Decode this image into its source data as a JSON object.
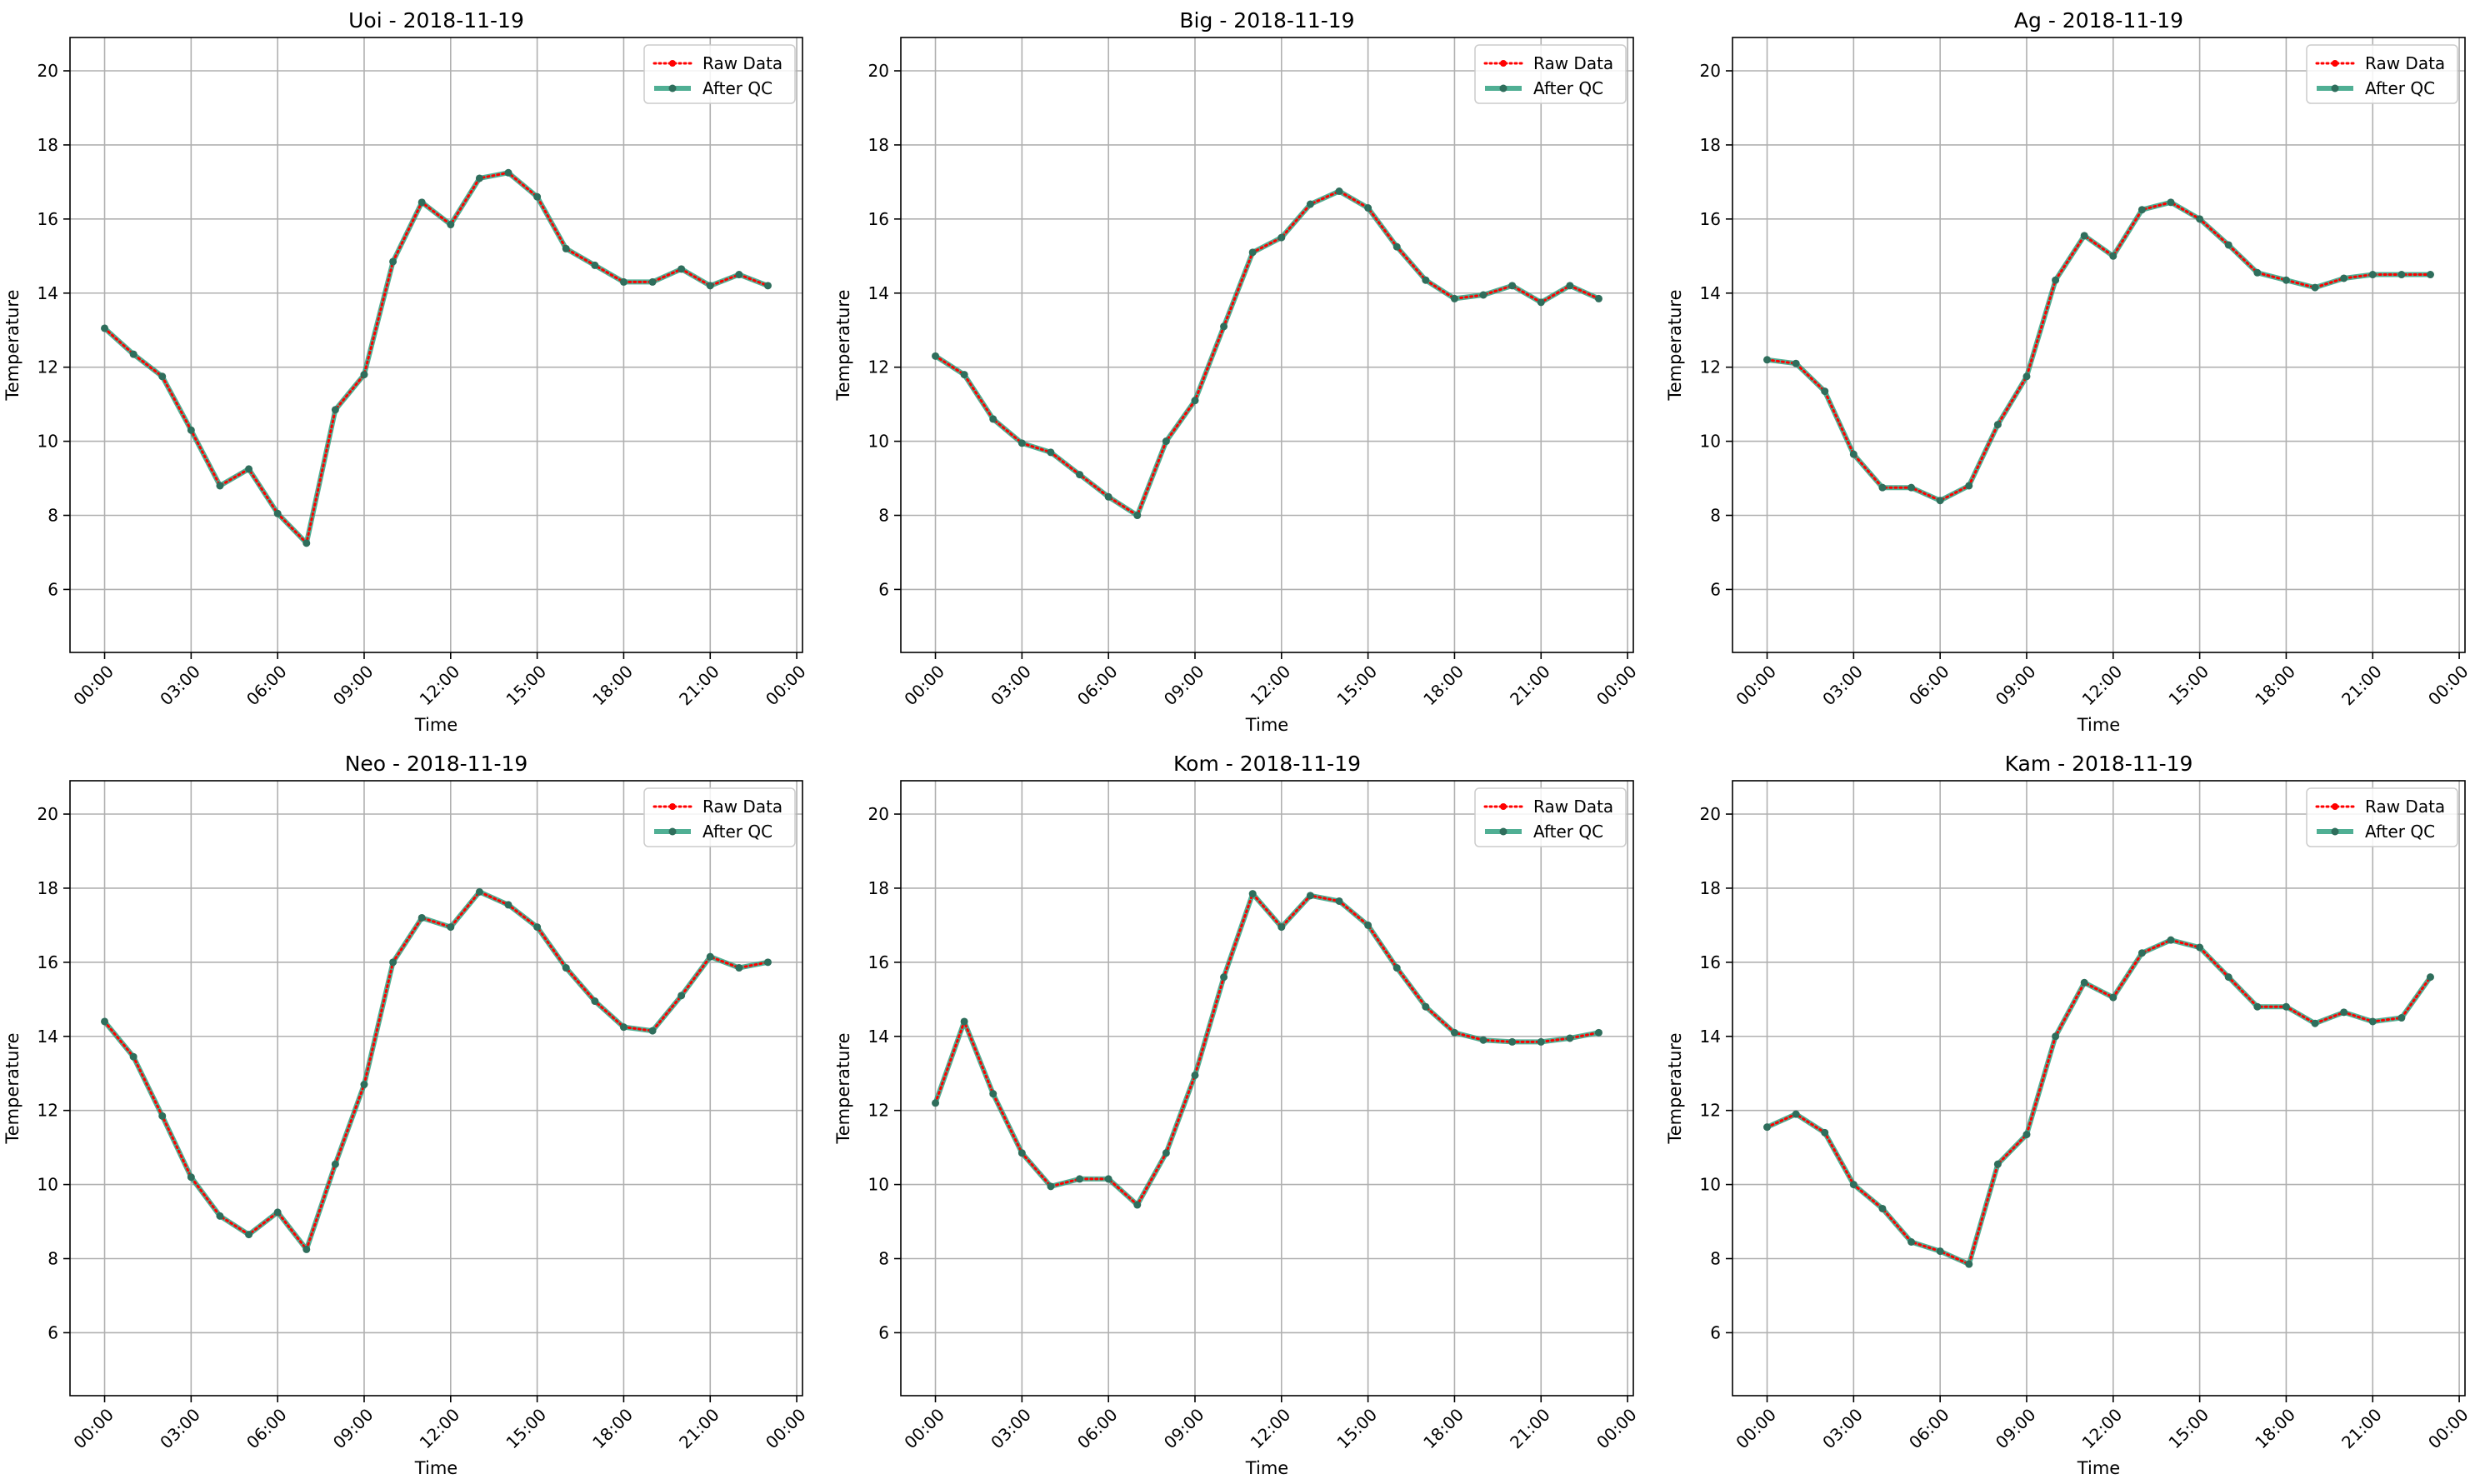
{
  "chart_data": [
    {
      "type": "line",
      "title": "Uoi - 2018-11-19",
      "xlabel": "Time",
      "ylabel": "Temperature",
      "x_tick_labels": [
        "00:00",
        "03:00",
        "06:00",
        "09:00",
        "12:00",
        "15:00",
        "18:00",
        "21:00",
        "00:00"
      ],
      "y_ticks": [
        6,
        8,
        10,
        12,
        14,
        16,
        18,
        20
      ],
      "ylim": [
        4.3,
        20.9
      ],
      "grid": true,
      "legend_position": "top-right",
      "x_hours": [
        0,
        1,
        2,
        3,
        4,
        5,
        6,
        7,
        8,
        9,
        10,
        11,
        12,
        13,
        14,
        15,
        16,
        17,
        18,
        19,
        20,
        21,
        22,
        23
      ],
      "series": [
        {
          "name": "Raw Data",
          "color": "#ff0000",
          "style": "dotted",
          "values": [
            13.05,
            12.35,
            11.75,
            10.3,
            8.8,
            9.25,
            8.05,
            7.25,
            10.85,
            11.8,
            14.85,
            16.45,
            15.85,
            17.1,
            17.25,
            16.6,
            15.2,
            14.75,
            14.3,
            14.3,
            14.65,
            14.2,
            14.5,
            14.2
          ]
        },
        {
          "name": "After QC",
          "color": "#2a9d7c",
          "style": "solid",
          "values": [
            13.05,
            12.35,
            11.75,
            10.3,
            8.8,
            9.25,
            8.05,
            7.25,
            10.85,
            11.8,
            14.85,
            16.45,
            15.85,
            17.1,
            17.25,
            16.6,
            15.2,
            14.75,
            14.3,
            14.3,
            14.65,
            14.2,
            14.5,
            14.2
          ]
        }
      ]
    },
    {
      "type": "line",
      "title": "Big - 2018-11-19",
      "xlabel": "Time",
      "ylabel": "Temperature",
      "x_tick_labels": [
        "00:00",
        "03:00",
        "06:00",
        "09:00",
        "12:00",
        "15:00",
        "18:00",
        "21:00",
        "00:00"
      ],
      "y_ticks": [
        6,
        8,
        10,
        12,
        14,
        16,
        18,
        20
      ],
      "ylim": [
        4.3,
        20.9
      ],
      "grid": true,
      "legend_position": "top-right",
      "x_hours": [
        0,
        1,
        2,
        3,
        4,
        5,
        6,
        7,
        8,
        9,
        10,
        11,
        12,
        13,
        14,
        15,
        16,
        17,
        18,
        19,
        20,
        21,
        22,
        23
      ],
      "series": [
        {
          "name": "Raw Data",
          "color": "#ff0000",
          "style": "dotted",
          "values": [
            12.3,
            11.8,
            10.6,
            9.95,
            9.7,
            9.1,
            8.5,
            8.0,
            10.0,
            11.1,
            13.1,
            15.1,
            15.5,
            16.4,
            16.75,
            16.3,
            15.25,
            14.35,
            13.85,
            13.95,
            14.2,
            13.75,
            14.2,
            13.85
          ]
        },
        {
          "name": "After QC",
          "color": "#2a9d7c",
          "style": "solid",
          "values": [
            12.3,
            11.8,
            10.6,
            9.95,
            9.7,
            9.1,
            8.5,
            8.0,
            10.0,
            11.1,
            13.1,
            15.1,
            15.5,
            16.4,
            16.75,
            16.3,
            15.25,
            14.35,
            13.85,
            13.95,
            14.2,
            13.75,
            14.2,
            13.85
          ]
        }
      ]
    },
    {
      "type": "line",
      "title": "Ag - 2018-11-19",
      "xlabel": "Time",
      "ylabel": "Temperature",
      "x_tick_labels": [
        "00:00",
        "03:00",
        "06:00",
        "09:00",
        "12:00",
        "15:00",
        "18:00",
        "21:00",
        "00:00"
      ],
      "y_ticks": [
        6,
        8,
        10,
        12,
        14,
        16,
        18,
        20
      ],
      "ylim": [
        4.3,
        20.9
      ],
      "grid": true,
      "legend_position": "top-right",
      "x_hours": [
        0,
        1,
        2,
        3,
        4,
        5,
        6,
        7,
        8,
        9,
        10,
        11,
        12,
        13,
        14,
        15,
        16,
        17,
        18,
        19,
        20,
        21,
        22,
        23
      ],
      "series": [
        {
          "name": "Raw Data",
          "color": "#ff0000",
          "style": "dotted",
          "values": [
            12.2,
            12.1,
            11.35,
            9.65,
            8.75,
            8.75,
            8.4,
            8.8,
            10.45,
            11.75,
            14.35,
            15.55,
            15.0,
            16.25,
            16.45,
            16.0,
            15.3,
            14.55,
            14.35,
            14.15,
            14.4,
            14.5,
            14.5,
            14.5
          ]
        },
        {
          "name": "After QC",
          "color": "#2a9d7c",
          "style": "solid",
          "values": [
            12.2,
            12.1,
            11.35,
            9.65,
            8.75,
            8.75,
            8.4,
            8.8,
            10.45,
            11.75,
            14.35,
            15.55,
            15.0,
            16.25,
            16.45,
            16.0,
            15.3,
            14.55,
            14.35,
            14.15,
            14.4,
            14.5,
            14.5,
            14.5
          ]
        }
      ]
    },
    {
      "type": "line",
      "title": "Neo - 2018-11-19",
      "xlabel": "Time",
      "ylabel": "Temperature",
      "x_tick_labels": [
        "00:00",
        "03:00",
        "06:00",
        "09:00",
        "12:00",
        "15:00",
        "18:00",
        "21:00",
        "00:00"
      ],
      "y_ticks": [
        6,
        8,
        10,
        12,
        14,
        16,
        18,
        20
      ],
      "ylim": [
        4.3,
        20.9
      ],
      "grid": true,
      "legend_position": "top-right",
      "x_hours": [
        0,
        1,
        2,
        3,
        4,
        5,
        6,
        7,
        8,
        9,
        10,
        11,
        12,
        13,
        14,
        15,
        16,
        17,
        18,
        19,
        20,
        21,
        22,
        23
      ],
      "series": [
        {
          "name": "Raw Data",
          "color": "#ff0000",
          "style": "dotted",
          "values": [
            14.4,
            13.45,
            11.85,
            10.2,
            9.15,
            8.65,
            9.25,
            8.25,
            10.55,
            12.7,
            16.0,
            17.2,
            16.95,
            17.9,
            17.55,
            16.95,
            15.85,
            14.95,
            14.25,
            14.15,
            15.1,
            16.15,
            15.85,
            16.0
          ]
        },
        {
          "name": "After QC",
          "color": "#2a9d7c",
          "style": "solid",
          "values": [
            14.4,
            13.45,
            11.85,
            10.2,
            9.15,
            8.65,
            9.25,
            8.25,
            10.55,
            12.7,
            16.0,
            17.2,
            16.95,
            17.9,
            17.55,
            16.95,
            15.85,
            14.95,
            14.25,
            14.15,
            15.1,
            16.15,
            15.85,
            16.0
          ]
        }
      ]
    },
    {
      "type": "line",
      "title": "Kom - 2018-11-19",
      "xlabel": "Time",
      "ylabel": "Temperature",
      "x_tick_labels": [
        "00:00",
        "03:00",
        "06:00",
        "09:00",
        "12:00",
        "15:00",
        "18:00",
        "21:00",
        "00:00"
      ],
      "y_ticks": [
        6,
        8,
        10,
        12,
        14,
        16,
        18,
        20
      ],
      "ylim": [
        4.3,
        20.9
      ],
      "grid": true,
      "legend_position": "top-right",
      "x_hours": [
        0,
        1,
        2,
        3,
        4,
        5,
        6,
        7,
        8,
        9,
        10,
        11,
        12,
        13,
        14,
        15,
        16,
        17,
        18,
        19,
        20,
        21,
        22,
        23
      ],
      "series": [
        {
          "name": "Raw Data",
          "color": "#ff0000",
          "style": "dotted",
          "values": [
            12.2,
            14.4,
            12.45,
            10.85,
            9.95,
            10.15,
            10.15,
            9.45,
            10.85,
            12.95,
            15.6,
            17.85,
            16.95,
            17.8,
            17.65,
            17.0,
            15.85,
            14.8,
            14.1,
            13.9,
            13.85,
            13.85,
            13.95,
            14.1
          ]
        },
        {
          "name": "After QC",
          "color": "#2a9d7c",
          "style": "solid",
          "values": [
            12.2,
            14.4,
            12.45,
            10.85,
            9.95,
            10.15,
            10.15,
            9.45,
            10.85,
            12.95,
            15.6,
            17.85,
            16.95,
            17.8,
            17.65,
            17.0,
            15.85,
            14.8,
            14.1,
            13.9,
            13.85,
            13.85,
            13.95,
            14.1
          ]
        }
      ]
    },
    {
      "type": "line",
      "title": "Kam - 2018-11-19",
      "xlabel": "Time",
      "ylabel": "Temperature",
      "x_tick_labels": [
        "00:00",
        "03:00",
        "06:00",
        "09:00",
        "12:00",
        "15:00",
        "18:00",
        "21:00",
        "00:00"
      ],
      "y_ticks": [
        6,
        8,
        10,
        12,
        14,
        16,
        18,
        20
      ],
      "ylim": [
        4.3,
        20.9
      ],
      "grid": true,
      "legend_position": "top-right",
      "x_hours": [
        0,
        1,
        2,
        3,
        4,
        5,
        6,
        7,
        8,
        9,
        10,
        11,
        12,
        13,
        14,
        15,
        16,
        17,
        18,
        19,
        20,
        21,
        22,
        23
      ],
      "series": [
        {
          "name": "Raw Data",
          "color": "#ff0000",
          "style": "dotted",
          "values": [
            11.55,
            11.9,
            11.4,
            10.0,
            9.35,
            8.45,
            8.2,
            7.85,
            10.55,
            11.35,
            14.0,
            15.45,
            15.05,
            16.25,
            16.6,
            16.4,
            15.6,
            14.8,
            14.8,
            14.35,
            14.65,
            14.4,
            14.5,
            15.6
          ]
        },
        {
          "name": "After QC",
          "color": "#2a9d7c",
          "style": "solid",
          "values": [
            11.55,
            11.9,
            11.4,
            10.0,
            9.35,
            8.45,
            8.2,
            7.85,
            10.55,
            11.35,
            14.0,
            15.45,
            15.05,
            16.25,
            16.6,
            16.4,
            15.6,
            14.8,
            14.8,
            14.35,
            14.65,
            14.4,
            14.5,
            15.6
          ]
        }
      ]
    }
  ]
}
